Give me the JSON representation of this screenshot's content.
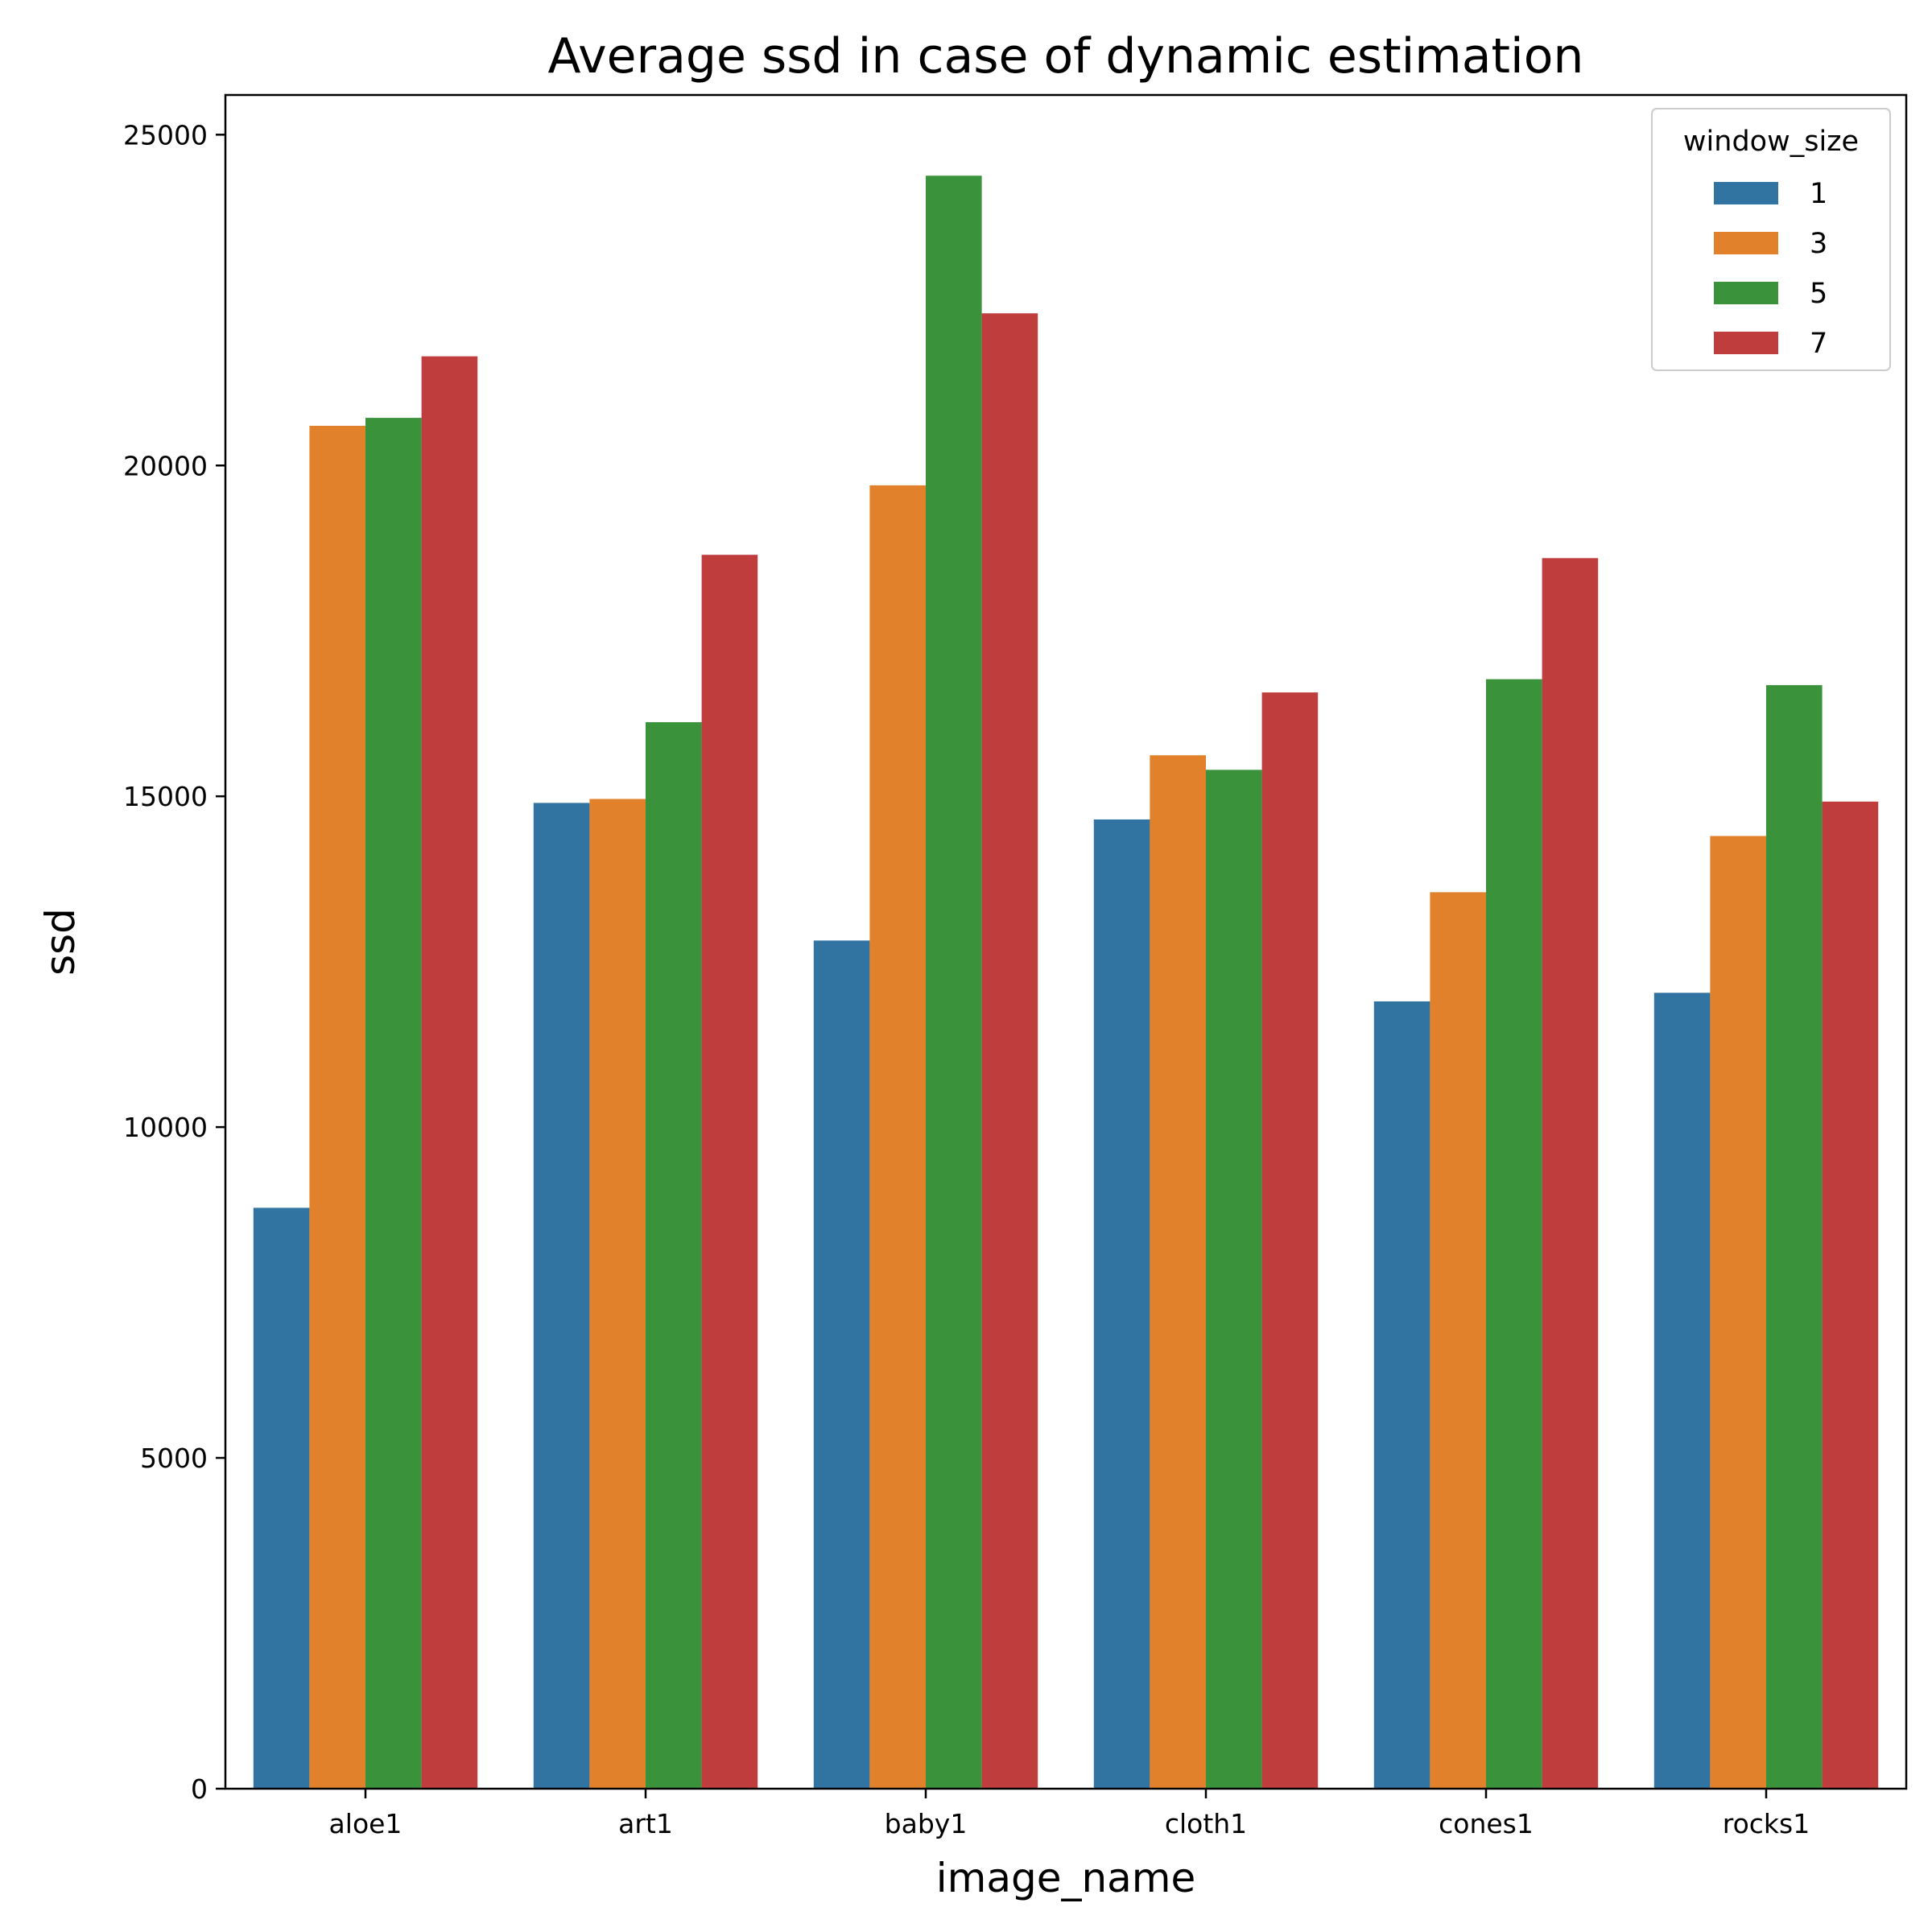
{
  "chart_data": {
    "type": "bar",
    "title": "Average ssd in case of dynamic estimation",
    "xlabel": "image_name",
    "ylabel": "ssd",
    "categories": [
      "aloe1",
      "art1",
      "baby1",
      "cloth1",
      "cones1",
      "rocks1"
    ],
    "ylim": [
      0,
      25600
    ],
    "yticks": [
      0,
      5000,
      10000,
      15000,
      20000,
      25000
    ],
    "grid": false,
    "legend": {
      "title": "window_size",
      "placement": "top-right"
    },
    "series": [
      {
        "name": "1",
        "color": "#3274a1",
        "values": [
          8780,
          14900,
          12820,
          14650,
          11900,
          12030
        ]
      },
      {
        "name": "3",
        "color": "#e1812c",
        "values": [
          20600,
          14960,
          19700,
          15620,
          13550,
          14400
        ]
      },
      {
        "name": "5",
        "color": "#3a923a",
        "values": [
          20720,
          16120,
          24380,
          15400,
          16770,
          16680
        ]
      },
      {
        "name": "7",
        "color": "#c03d3e",
        "values": [
          21650,
          18650,
          22300,
          16570,
          18600,
          14920
        ]
      }
    ]
  }
}
